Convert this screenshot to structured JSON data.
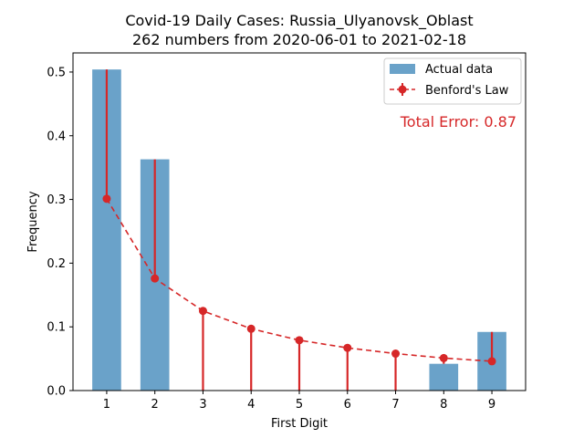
{
  "chart_data": {
    "type": "bar",
    "title_line1": "Covid-19 Daily Cases: Russia_Ulyanovsk_Oblast",
    "title_line2": "262 numbers from 2020-06-01 to 2021-02-18",
    "xlabel": "First Digit",
    "ylabel": "Frequency",
    "categories": [
      "1",
      "2",
      "3",
      "4",
      "5",
      "6",
      "7",
      "8",
      "9"
    ],
    "series": [
      {
        "name": "Actual data",
        "kind": "bar",
        "color": "#6aa2c9",
        "values": [
          0.504,
          0.363,
          0.0,
          0.0,
          0.0,
          0.0,
          0.0,
          0.042,
          0.092
        ]
      },
      {
        "name": "Benford's Law",
        "kind": "line-errorbar",
        "color": "#d62728",
        "values": [
          0.301,
          0.176,
          0.125,
          0.097,
          0.079,
          0.067,
          0.058,
          0.051,
          0.046
        ]
      }
    ],
    "ylim": [
      0,
      0.53
    ],
    "yticks": [
      "0.0",
      "0.1",
      "0.2",
      "0.3",
      "0.4",
      "0.5"
    ],
    "ytick_values": [
      0.0,
      0.1,
      0.2,
      0.3,
      0.4,
      0.5
    ],
    "annotation": "Total Error: 0.87",
    "annotation_color": "#d62728",
    "legend_position": "top-right",
    "grid": false
  }
}
